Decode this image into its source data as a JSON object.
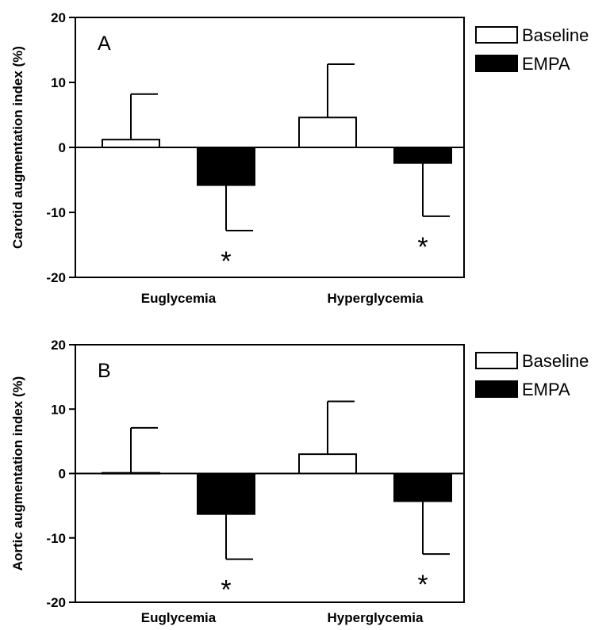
{
  "chart_data": [
    {
      "type": "bar",
      "panel_label": "A",
      "ylabel": "Carotid augmentation index (%)",
      "ylim": [
        -20,
        20
      ],
      "yticks": [
        -20,
        -10,
        0,
        10,
        20
      ],
      "categories": [
        "Euglycemia",
        "Hyperglycemia"
      ],
      "series": [
        {
          "name": "Baseline",
          "values": [
            1.2,
            4.6
          ],
          "error": [
            7.0,
            8.2
          ],
          "color": "#ffffff"
        },
        {
          "name": "EMPA",
          "values": [
            -5.8,
            -2.4
          ],
          "error": [
            7.0,
            8.2
          ],
          "color": "#000000"
        }
      ],
      "annotations": [
        "*",
        "*"
      ],
      "legend_position": "top-right"
    },
    {
      "type": "bar",
      "panel_label": "B",
      "ylabel": "Aortic augmentation index (%)",
      "ylim": [
        -20,
        20
      ],
      "yticks": [
        -20,
        -10,
        0,
        10,
        20
      ],
      "categories": [
        "Euglycemia",
        "Hyperglycemia"
      ],
      "series": [
        {
          "name": "Baseline",
          "values": [
            0.1,
            3.0
          ],
          "error": [
            7.0,
            8.2
          ],
          "color": "#ffffff"
        },
        {
          "name": "EMPA",
          "values": [
            -6.3,
            -4.3
          ],
          "error": [
            7.0,
            8.2
          ],
          "color": "#000000"
        }
      ],
      "annotations": [
        "*",
        "*"
      ],
      "legend_position": "top-right"
    }
  ]
}
